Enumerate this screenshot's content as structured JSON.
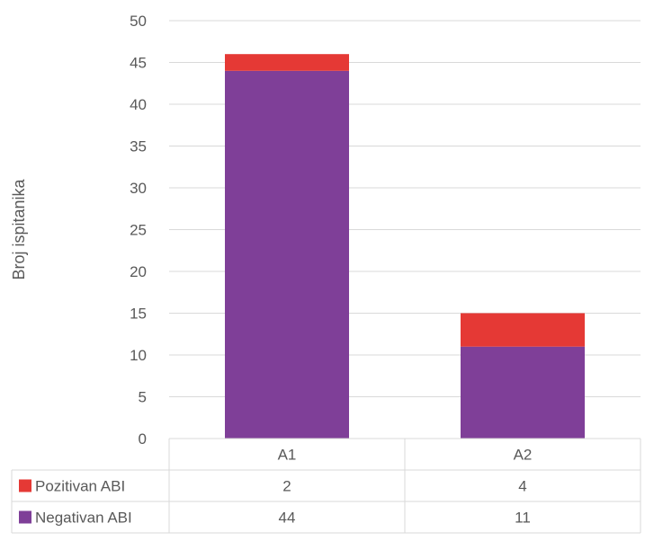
{
  "chart_data": {
    "type": "bar",
    "stacked": true,
    "categories": [
      "A1",
      "A2"
    ],
    "series": [
      {
        "name": "Negativan ABI",
        "values": [
          44,
          11
        ],
        "color": "#7f3f98"
      },
      {
        "name": "Pozitivan ABI",
        "values": [
          2,
          4
        ],
        "color": "#e53935"
      }
    ],
    "ylabel": "Broj ispitanika",
    "ylim": [
      0,
      50
    ],
    "yticks": [
      0,
      5,
      10,
      15,
      20,
      25,
      30,
      35,
      40,
      45,
      50
    ],
    "grid": true,
    "legend": "data-table",
    "data_table_rows": [
      "Pozitivan ABI",
      "Negativan ABI"
    ]
  }
}
